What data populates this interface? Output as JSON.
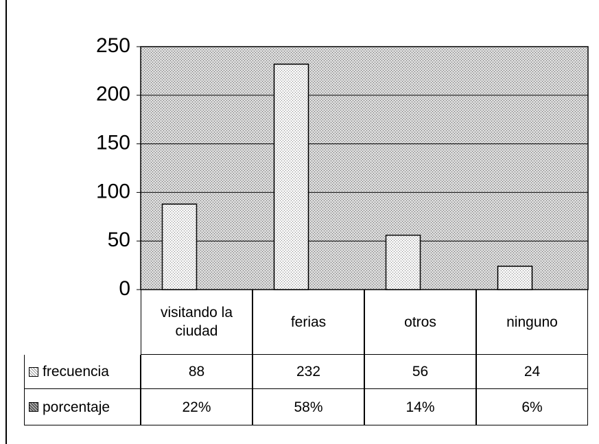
{
  "chart_data": {
    "type": "bar",
    "categories": [
      "visitando la ciudad",
      "ferias",
      "otros",
      "ninguno"
    ],
    "series": [
      {
        "name": "frecuencia",
        "color": "#ffffff",
        "values": [
          88,
          232,
          56,
          24
        ]
      },
      {
        "name": "porcentaje",
        "color": "#888888",
        "values": [
          22,
          58,
          14,
          6
        ],
        "value_labels": [
          "22%",
          "58%",
          "14%",
          "6%"
        ]
      }
    ],
    "ylim": [
      0,
      250
    ],
    "yticks": [
      0,
      50,
      100,
      150,
      200,
      250
    ],
    "grid": true
  }
}
